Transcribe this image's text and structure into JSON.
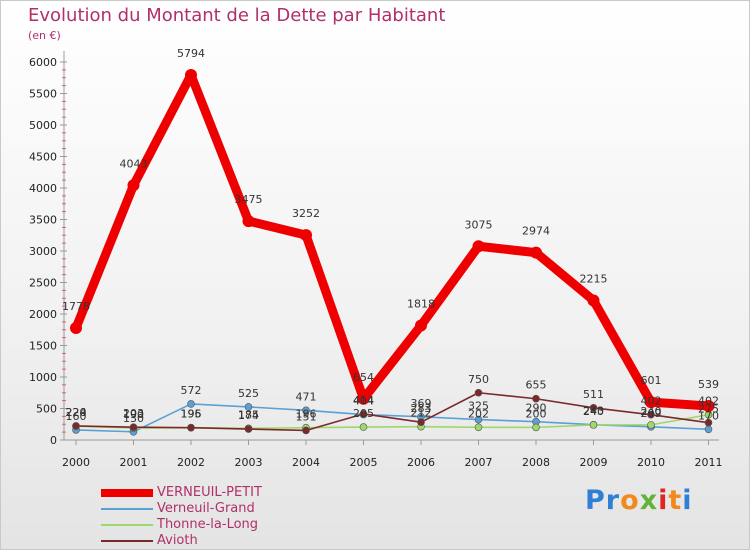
{
  "title": "Evolution du Montant de la Dette par Habitant",
  "subtitle": "(en €)",
  "brand": {
    "letters": [
      "P",
      "r",
      "o",
      "x",
      "i",
      "t",
      "i"
    ],
    "colors": [
      "#2f7fd6",
      "#2f7fd6",
      "#f08a1d",
      "#63b33b",
      "#e02424",
      "#f08a1d",
      "#2f7fd6"
    ]
  },
  "chart_data": {
    "type": "line",
    "title": "Evolution du Montant de la Dette par Habitant",
    "subtitle": "(en €)",
    "xlabel": "",
    "ylabel": "",
    "x": [
      "2000",
      "2001",
      "2002",
      "2003",
      "2004",
      "2005",
      "2006",
      "2007",
      "2008",
      "2009",
      "2010",
      "2011"
    ],
    "ylim": [
      0,
      6000
    ],
    "yticks": [
      "0",
      "500",
      "1000",
      "1500",
      "2000",
      "2500",
      "3000",
      "3500",
      "4000",
      "4500",
      "5000",
      "5500",
      "6000"
    ],
    "grid": false,
    "legend_position": "bottom-left",
    "series": [
      {
        "name": "VERNEUIL-PETIT",
        "color": "#ee0000",
        "values": [
          1778,
          4043,
          5794,
          3475,
          3252,
          654,
          1818,
          3075,
          2974,
          2215,
          601,
          539
        ],
        "labels": [
          "1778",
          "4043",
          "5794",
          "3475",
          "3252",
          "654",
          "1818",
          "3075",
          "2974",
          "2215",
          "601",
          "539"
        ]
      },
      {
        "name": "Verneuil-Grand",
        "color": "#5aa0d6",
        "values": [
          160,
          130,
          572,
          525,
          471,
          404,
          369,
          325,
          290,
          243,
          209,
          170
        ],
        "labels": [
          "160",
          "130",
          "572",
          "525",
          "471",
          "404",
          "369",
          "325",
          "290",
          "243",
          "209",
          "170"
        ]
      },
      {
        "name": "Thonne-la-Long",
        "color": "#9fd86a",
        "values": [
          220,
          190,
          195,
          185,
          196,
          205,
          212,
          202,
          200,
          240,
          240,
          402
        ],
        "labels": [
          "220",
          "190",
          "195",
          "185",
          "196",
          "205",
          "212",
          "202",
          "200",
          "240",
          "240",
          "402"
        ]
      },
      {
        "name": "Avioth",
        "color": "#7a2a2a",
        "values": [
          224,
          203,
          196,
          174,
          151,
          414,
          283,
          750,
          655,
          511,
          402,
          275
        ],
        "labels": [
          "224",
          "203",
          "196",
          "174",
          "151",
          "414",
          "283",
          "750",
          "655",
          "511",
          "402",
          "275"
        ]
      }
    ]
  }
}
